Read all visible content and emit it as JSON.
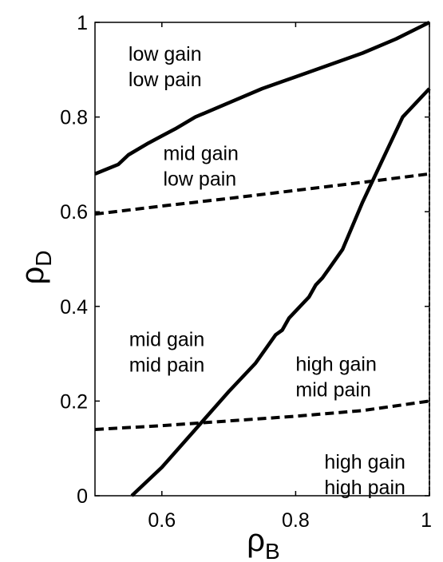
{
  "chart_data": {
    "type": "line",
    "xlim": [
      0.5,
      1
    ],
    "ylim": [
      0,
      1
    ],
    "xticks": [
      {
        "value": 0.6,
        "label": "0.6"
      },
      {
        "value": 0.8,
        "label": "0.8"
      },
      {
        "value": 1,
        "label": "1"
      }
    ],
    "yticks": [
      {
        "value": 0,
        "label": "0"
      },
      {
        "value": 0.2,
        "label": "0.2"
      },
      {
        "value": 0.4,
        "label": "0.4"
      },
      {
        "value": 0.6,
        "label": "0.6"
      },
      {
        "value": 0.8,
        "label": "0.8"
      },
      {
        "value": 1,
        "label": "1"
      }
    ],
    "xlabel": {
      "base": "ρ",
      "sub": "B"
    },
    "ylabel": {
      "base": "ρ",
      "sub": "D"
    },
    "grid": false,
    "series": [
      {
        "style": "solid",
        "x": [
          0.5,
          0.535,
          0.55,
          0.58,
          0.6,
          0.62,
          0.65,
          0.7,
          0.75,
          0.78,
          0.8,
          0.85,
          0.9,
          0.95,
          1.0
        ],
        "y": [
          0.68,
          0.7,
          0.72,
          0.745,
          0.76,
          0.775,
          0.8,
          0.83,
          0.86,
          0.875,
          0.885,
          0.91,
          0.935,
          0.965,
          1.0
        ]
      },
      {
        "style": "dashed",
        "x": [
          0.5,
          0.6,
          0.7,
          0.8,
          0.9,
          1.0
        ],
        "y": [
          0.595,
          0.612,
          0.628,
          0.645,
          0.662,
          0.68
        ]
      },
      {
        "style": "solid",
        "x": [
          0.555,
          0.6,
          0.65,
          0.7,
          0.74,
          0.77,
          0.78,
          0.79,
          0.8,
          0.82,
          0.83,
          0.84,
          0.85,
          0.87,
          0.9,
          0.93,
          0.96,
          0.98,
          1.0
        ],
        "y": [
          0.0,
          0.06,
          0.14,
          0.22,
          0.28,
          0.34,
          0.35,
          0.375,
          0.39,
          0.42,
          0.445,
          0.46,
          0.48,
          0.52,
          0.62,
          0.71,
          0.8,
          0.83,
          0.86
        ]
      },
      {
        "style": "dashed",
        "x": [
          0.5,
          0.6,
          0.7,
          0.8,
          0.9,
          1.0
        ],
        "y": [
          0.14,
          0.148,
          0.158,
          0.168,
          0.18,
          0.2
        ]
      },
      {
        "style": "dashed",
        "x": [
          1.0,
          1.0
        ],
        "y": [
          0.0,
          0.86
        ]
      }
    ],
    "annotations": [
      {
        "x": 0.55,
        "y": 0.865,
        "lines": [
          "low gain",
          "low pain"
        ]
      },
      {
        "x": 0.602,
        "y": 0.655,
        "lines": [
          "mid gain",
          "low pain"
        ]
      },
      {
        "x": 0.551,
        "y": 0.262,
        "lines": [
          "mid gain",
          "mid pain"
        ]
      },
      {
        "x": 0.8,
        "y": 0.21,
        "lines": [
          "high gain",
          "mid pain"
        ]
      },
      {
        "x": 0.843,
        "y": 0.003,
        "lines": [
          "high gain",
          "high pain"
        ]
      }
    ]
  }
}
